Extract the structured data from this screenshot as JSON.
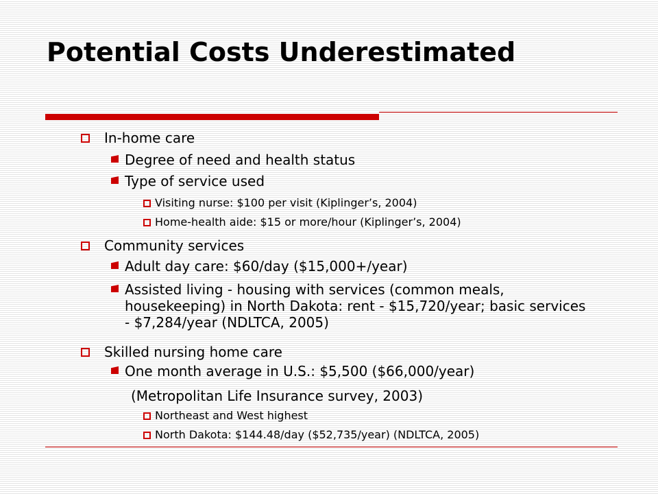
{
  "slide": {
    "title": "Potential Costs Underestimated",
    "sections": [
      {
        "label": "In-home care",
        "items": [
          {
            "label": "Degree of need and health status"
          },
          {
            "label": "Type of service used",
            "items": [
              {
                "label": "Visiting nurse: $100 per visit (Kiplinger’s, 2004)"
              },
              {
                "label": "Home-health aide: $15 or more/hour (Kiplinger’s, 2004)"
              }
            ]
          }
        ]
      },
      {
        "label": "Community services",
        "items": [
          {
            "label": "Adult day care: $60/day ($15,000+/year)"
          },
          {
            "label": "Assisted living - housing with services (common meals, housekeeping) in North Dakota: rent - $15,720/year; basic services - $7,284/year (NDLTCA, 2005)"
          }
        ]
      },
      {
        "label": "Skilled nursing home care",
        "items": [
          {
            "label": "One month average in U.S.: $5,500 ($66,000/year)",
            "continuation": "(Metropolitan Life Insurance survey, 2003)",
            "items": [
              {
                "label": "Northeast and West highest"
              },
              {
                "label": "North Dakota: $144.48/day ($52,735/year) (NDLTCA, 2005)"
              }
            ]
          }
        ]
      }
    ]
  },
  "colors": {
    "accent": "#cc0000",
    "text": "#000000",
    "stripe": "#e4e4e4"
  },
  "icons": {
    "level1_bullet": "hollow-square-icon",
    "level2_bullet": "solid-square-icon",
    "level3_bullet": "hollow-square-icon"
  }
}
